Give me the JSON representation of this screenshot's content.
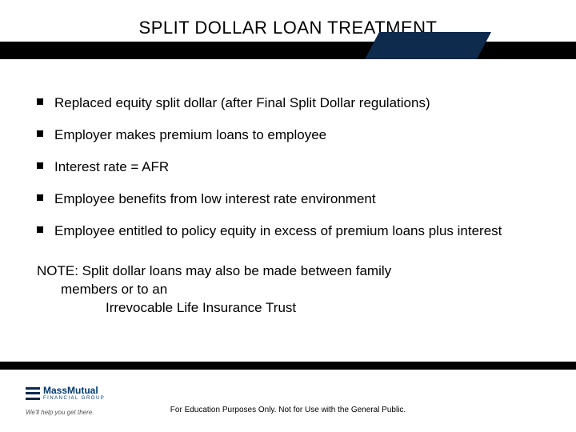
{
  "header": {
    "title": "SPLIT DOLLAR LOAN TREATMENT",
    "bar_color": "#000000",
    "accent_color": "#0e2a4d"
  },
  "bullets": [
    "Replaced equity split dollar (after Final Split Dollar regulations)",
    "Employer makes premium loans to employee",
    "Interest rate = AFR",
    "Employee benefits from low interest rate environment",
    "Employee entitled to policy equity in excess of premium loans plus interest"
  ],
  "note": {
    "line1": "NOTE:  Split dollar loans may also be made between family",
    "line2": "members or to an",
    "line3": "Irrevocable Life Insurance Trust"
  },
  "footer": {
    "logo_main": "MassMutual",
    "logo_sub": "FINANCIAL GROUP",
    "tagline": "We'll help you get there.",
    "disclaimer": "For Education Purposes Only.  Not for Use with the General Public.",
    "logo_color": "#003a70"
  },
  "typography": {
    "title_fontsize": 22,
    "body_fontsize": 17,
    "disclaimer_fontsize": 10
  }
}
